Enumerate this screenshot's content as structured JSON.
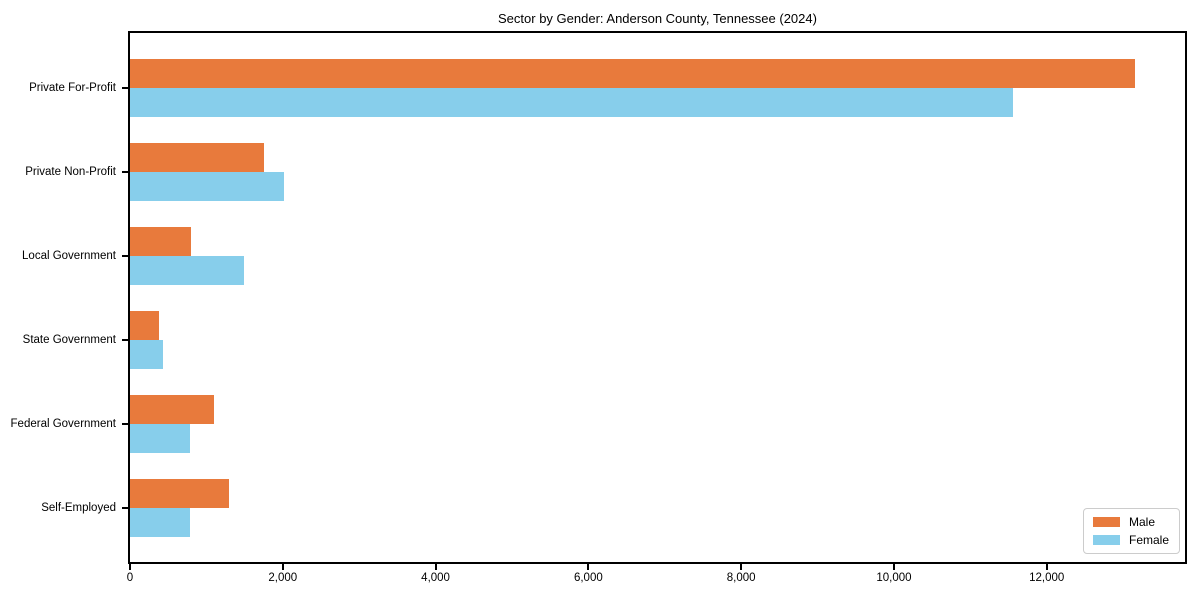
{
  "title": "Sector by Gender: Anderson County, Tennessee (2024)",
  "chart_data": {
    "type": "bar",
    "orientation": "horizontal",
    "title": "Sector by Gender: Anderson County, Tennessee (2024)",
    "categories": [
      "Private For-Profit",
      "Private Non-Profit",
      "Local Government",
      "State Government",
      "Federal Government",
      "Self-Employed"
    ],
    "series": [
      {
        "name": "Male",
        "color": "#E87A3C",
        "values": [
          13160,
          1755,
          795,
          385,
          1105,
          1290
        ]
      },
      {
        "name": "Female",
        "color": "#87CEEB",
        "values": [
          11560,
          2020,
          1495,
          430,
          780,
          785
        ]
      }
    ],
    "xlabel": "",
    "ylabel": "",
    "xlim": [
      0,
      13810
    ],
    "x_ticks": [
      0,
      2000,
      4000,
      6000,
      8000,
      10000,
      12000
    ],
    "x_tick_labels": [
      "0",
      "2,000",
      "4,000",
      "6,000",
      "8,000",
      "10,000",
      "12,000"
    ],
    "grid": false,
    "legend_position": "lower right"
  }
}
